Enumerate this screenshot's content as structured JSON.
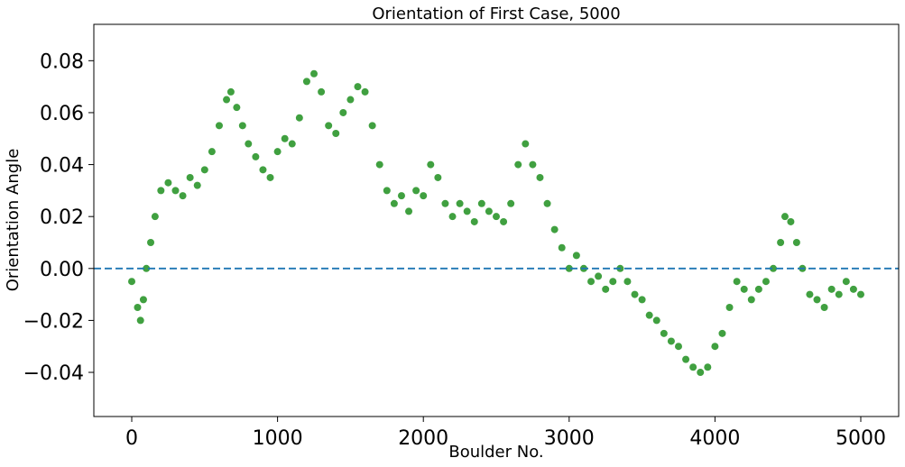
{
  "chart_data": {
    "type": "scatter",
    "title": "Orientation of First Case, 5000",
    "xlabel": "Boulder No.",
    "ylabel": "Orientation Angle",
    "xlim": [
      -260,
      5260
    ],
    "ylim": [
      -0.057,
      0.094
    ],
    "xticks": [
      0,
      1000,
      2000,
      3000,
      4000,
      5000
    ],
    "xtick_labels": [
      "0",
      "1000",
      "2000",
      "3000",
      "4000",
      "5000"
    ],
    "yticks": [
      -0.04,
      -0.02,
      0.0,
      0.02,
      0.04,
      0.06,
      0.08
    ],
    "ytick_labels": [
      "−0.04",
      "−0.02",
      "0.00",
      "0.02",
      "0.04",
      "0.06",
      "0.08"
    ],
    "grid": false,
    "reference_line": {
      "y": 0.0,
      "style": "dashed",
      "color": "#1f77b4"
    },
    "marker_color": "#008000",
    "series": [
      {
        "x": [
          0,
          40,
          60,
          80,
          100,
          130,
          160,
          200,
          250,
          300,
          350,
          400,
          450,
          500,
          550,
          600,
          650,
          680,
          720,
          760,
          800,
          850,
          900,
          950,
          1000,
          1050,
          1100,
          1150,
          1200,
          1250,
          1300,
          1350,
          1400,
          1450,
          1500,
          1550,
          1600,
          1650,
          1700,
          1750,
          1800,
          1850,
          1900,
          1950,
          2000,
          2050,
          2100,
          2150,
          2200,
          2250,
          2300,
          2350,
          2400,
          2450,
          2500,
          2550,
          2600,
          2650,
          2700,
          2750,
          2800,
          2850,
          2900,
          2950,
          3000,
          3050,
          3100,
          3150,
          3200,
          3250,
          3300,
          3350,
          3400,
          3450,
          3500,
          3550,
          3600,
          3650,
          3700,
          3750,
          3800,
          3850,
          3900,
          3950,
          4000,
          4050,
          4100,
          4150,
          4200,
          4250,
          4300,
          4350,
          4400,
          4450,
          4480,
          4520,
          4560,
          4600,
          4650,
          4700,
          4750,
          4800,
          4850,
          4900,
          4950,
          5000
        ],
        "y": [
          -0.005,
          -0.015,
          -0.02,
          -0.012,
          0.0,
          0.01,
          0.02,
          0.03,
          0.033,
          0.03,
          0.028,
          0.035,
          0.032,
          0.038,
          0.045,
          0.055,
          0.065,
          0.068,
          0.062,
          0.055,
          0.048,
          0.043,
          0.038,
          0.035,
          0.045,
          0.05,
          0.048,
          0.058,
          0.072,
          0.075,
          0.068,
          0.055,
          0.052,
          0.06,
          0.065,
          0.07,
          0.068,
          0.055,
          0.04,
          0.03,
          0.025,
          0.028,
          0.022,
          0.03,
          0.028,
          0.04,
          0.035,
          0.025,
          0.02,
          0.025,
          0.022,
          0.018,
          0.025,
          0.022,
          0.02,
          0.018,
          0.025,
          0.04,
          0.048,
          0.04,
          0.035,
          0.025,
          0.015,
          0.008,
          0.0,
          0.005,
          0.0,
          -0.005,
          -0.003,
          -0.008,
          -0.005,
          0.0,
          -0.005,
          -0.01,
          -0.012,
          -0.018,
          -0.02,
          -0.025,
          -0.028,
          -0.03,
          -0.035,
          -0.038,
          -0.04,
          -0.038,
          -0.03,
          -0.025,
          -0.015,
          -0.005,
          -0.008,
          -0.012,
          -0.008,
          -0.005,
          0.0,
          0.01,
          0.02,
          0.018,
          0.01,
          0.0,
          -0.01,
          -0.012,
          -0.015,
          -0.008,
          -0.01,
          -0.005,
          -0.008,
          -0.01
        ]
      }
    ]
  }
}
